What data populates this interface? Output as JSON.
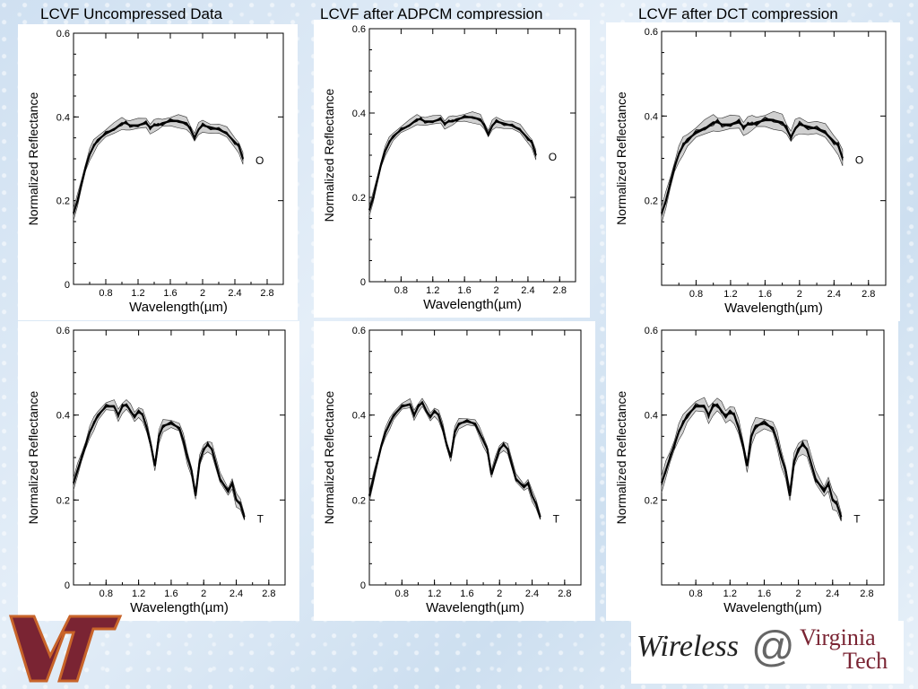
{
  "titles": {
    "uncompressed": "LCVF Uncompressed Data",
    "adpcm": "LCVF after ADPCM compression",
    "dct": "LCVF after DCT compression"
  },
  "logo": {
    "vt_text": "VT",
    "wireless": "Wireless",
    "at": "@",
    "virginia": "Virginia",
    "tech": "Tech"
  },
  "colors": {
    "vt_maroon": "#7a2433",
    "vt_orange": "#c8642a"
  },
  "chart_data": [
    {
      "id": "uncompressed-O",
      "type": "line",
      "marker": "O",
      "variant": "unc",
      "xlabel": "Wavelength(µm)",
      "ylabel": "Normalized Reflectance",
      "xlim": [
        0.4,
        3.0
      ],
      "ylim": [
        0,
        0.6
      ],
      "xticks": [
        "0.8",
        "1.2",
        "1.6",
        "2",
        "2.4",
        "2.8"
      ],
      "yticks": [
        "0",
        "0.2",
        "0.4",
        "0.6"
      ],
      "x": [
        0.4,
        0.45,
        0.5,
        0.55,
        0.6,
        0.65,
        0.7,
        0.8,
        0.9,
        1.0,
        1.05,
        1.1,
        1.2,
        1.3,
        1.35,
        1.4,
        1.45,
        1.5,
        1.6,
        1.7,
        1.8,
        1.85,
        1.9,
        1.95,
        2.0,
        2.1,
        2.2,
        2.3,
        2.4,
        2.45,
        2.5
      ],
      "y": [
        0.17,
        0.2,
        0.24,
        0.28,
        0.31,
        0.33,
        0.345,
        0.36,
        0.37,
        0.385,
        0.385,
        0.38,
        0.38,
        0.385,
        0.375,
        0.38,
        0.38,
        0.385,
        0.39,
        0.39,
        0.385,
        0.37,
        0.35,
        0.37,
        0.38,
        0.375,
        0.37,
        0.36,
        0.34,
        0.33,
        0.3
      ]
    },
    {
      "id": "adpcm-O",
      "type": "line",
      "marker": "O",
      "variant": "adpcm",
      "xlabel": "Wavelength(µm)",
      "ylabel": "Normalized Reflectance",
      "xlim": [
        0.4,
        3.0
      ],
      "ylim": [
        0,
        0.6
      ],
      "xticks": [
        "0.8",
        "1.2",
        "1.6",
        "2",
        "2.4",
        "2.8"
      ],
      "yticks": [
        "0",
        "0.2",
        "0.4",
        "0.6"
      ],
      "x": [
        0.4,
        0.45,
        0.5,
        0.55,
        0.6,
        0.65,
        0.7,
        0.8,
        0.9,
        1.0,
        1.05,
        1.1,
        1.2,
        1.3,
        1.35,
        1.4,
        1.45,
        1.5,
        1.6,
        1.7,
        1.8,
        1.85,
        1.9,
        1.95,
        2.0,
        2.1,
        2.2,
        2.3,
        2.4,
        2.45,
        2.5
      ],
      "y": [
        0.17,
        0.2,
        0.24,
        0.28,
        0.31,
        0.33,
        0.345,
        0.36,
        0.37,
        0.385,
        0.385,
        0.38,
        0.38,
        0.385,
        0.375,
        0.38,
        0.38,
        0.385,
        0.39,
        0.39,
        0.385,
        0.37,
        0.35,
        0.37,
        0.38,
        0.375,
        0.37,
        0.36,
        0.34,
        0.33,
        0.3
      ]
    },
    {
      "id": "dct-O",
      "type": "line",
      "marker": "O",
      "variant": "dct",
      "xlabel": "Wavelength(µm)",
      "ylabel": "Normalized Reflectance",
      "xlim": [
        0.4,
        3.0
      ],
      "ylim": [
        0,
        0.6
      ],
      "xticks": [
        "0.8",
        "1.2",
        "1.6",
        "2",
        "2.4",
        "2.8"
      ],
      "yticks": [
        "0.2",
        "0.4",
        "0.6"
      ],
      "x": [
        0.4,
        0.45,
        0.5,
        0.55,
        0.6,
        0.65,
        0.7,
        0.8,
        0.9,
        1.0,
        1.05,
        1.1,
        1.2,
        1.3,
        1.35,
        1.4,
        1.45,
        1.5,
        1.6,
        1.7,
        1.8,
        1.85,
        1.9,
        1.95,
        2.0,
        2.1,
        2.2,
        2.3,
        2.4,
        2.45,
        2.5
      ],
      "y": [
        0.17,
        0.2,
        0.24,
        0.28,
        0.31,
        0.33,
        0.345,
        0.36,
        0.37,
        0.385,
        0.385,
        0.38,
        0.38,
        0.385,
        0.375,
        0.38,
        0.38,
        0.385,
        0.39,
        0.39,
        0.385,
        0.37,
        0.35,
        0.37,
        0.38,
        0.375,
        0.37,
        0.36,
        0.34,
        0.33,
        0.3
      ]
    },
    {
      "id": "uncompressed-T",
      "type": "line",
      "marker": "T",
      "variant": "unc",
      "xlabel": "Wavelength(µm)",
      "ylabel": "Normalized Reflectance",
      "xlim": [
        0.4,
        3.0
      ],
      "ylim": [
        0,
        0.6
      ],
      "xticks": [
        "0.8",
        "1.2",
        "1.6",
        "2",
        "2.4",
        "2.8"
      ],
      "yticks": [
        "0",
        "0.2",
        "0.4",
        "0.6"
      ],
      "x": [
        0.4,
        0.45,
        0.5,
        0.55,
        0.6,
        0.65,
        0.7,
        0.8,
        0.9,
        0.95,
        1.0,
        1.05,
        1.1,
        1.15,
        1.2,
        1.25,
        1.3,
        1.35,
        1.4,
        1.45,
        1.5,
        1.6,
        1.7,
        1.75,
        1.8,
        1.85,
        1.9,
        1.95,
        2.0,
        2.05,
        2.1,
        2.2,
        2.3,
        2.35,
        2.4,
        2.45,
        2.5
      ],
      "y": [
        0.24,
        0.27,
        0.3,
        0.33,
        0.36,
        0.38,
        0.4,
        0.42,
        0.42,
        0.4,
        0.42,
        0.425,
        0.41,
        0.395,
        0.41,
        0.4,
        0.37,
        0.33,
        0.28,
        0.35,
        0.375,
        0.38,
        0.37,
        0.34,
        0.3,
        0.27,
        0.21,
        0.29,
        0.32,
        0.33,
        0.32,
        0.25,
        0.22,
        0.24,
        0.2,
        0.19,
        0.16
      ]
    },
    {
      "id": "adpcm-T",
      "type": "line",
      "marker": "T",
      "variant": "adpcm",
      "xlabel": "Wavelength(µm)",
      "ylabel": "Normalized Reflectance",
      "xlim": [
        0.4,
        3.0
      ],
      "ylim": [
        0,
        0.6
      ],
      "xticks": [
        "0.8",
        "1.2",
        "1.6",
        "2",
        "2.4",
        "2.8"
      ],
      "yticks": [
        "0",
        "0.2",
        "0.4",
        "0.6"
      ],
      "x": [
        0.4,
        0.45,
        0.5,
        0.55,
        0.6,
        0.65,
        0.7,
        0.8,
        0.9,
        0.95,
        1.0,
        1.05,
        1.1,
        1.15,
        1.2,
        1.25,
        1.3,
        1.35,
        1.4,
        1.45,
        1.5,
        1.6,
        1.7,
        1.75,
        1.8,
        1.85,
        1.9,
        1.95,
        2.0,
        2.05,
        2.1,
        2.2,
        2.3,
        2.35,
        2.4,
        2.45,
        2.5
      ],
      "y": [
        0.21,
        0.25,
        0.29,
        0.33,
        0.36,
        0.38,
        0.4,
        0.42,
        0.425,
        0.4,
        0.42,
        0.43,
        0.41,
        0.395,
        0.41,
        0.4,
        0.37,
        0.33,
        0.3,
        0.36,
        0.38,
        0.385,
        0.38,
        0.36,
        0.34,
        0.32,
        0.26,
        0.29,
        0.32,
        0.33,
        0.32,
        0.25,
        0.23,
        0.24,
        0.21,
        0.19,
        0.16
      ]
    },
    {
      "id": "dct-T",
      "type": "line",
      "marker": "T",
      "variant": "dct",
      "xlabel": "Wavelength(µm)",
      "ylabel": "Normalized Reflectance",
      "xlim": [
        0.4,
        3.0
      ],
      "ylim": [
        0,
        0.6
      ],
      "xticks": [
        "0.8",
        "1.2",
        "1.6",
        "2",
        "2.4",
        "2.8"
      ],
      "yticks": [
        "0.2",
        "0.4",
        "0.6"
      ],
      "x": [
        0.4,
        0.45,
        0.5,
        0.55,
        0.6,
        0.65,
        0.7,
        0.8,
        0.9,
        0.95,
        1.0,
        1.05,
        1.1,
        1.15,
        1.2,
        1.25,
        1.3,
        1.35,
        1.4,
        1.45,
        1.5,
        1.6,
        1.7,
        1.75,
        1.8,
        1.85,
        1.9,
        1.95,
        2.0,
        2.05,
        2.1,
        2.2,
        2.3,
        2.35,
        2.4,
        2.45,
        2.5
      ],
      "y": [
        0.24,
        0.27,
        0.3,
        0.33,
        0.36,
        0.38,
        0.4,
        0.42,
        0.42,
        0.4,
        0.42,
        0.425,
        0.41,
        0.395,
        0.41,
        0.4,
        0.37,
        0.33,
        0.28,
        0.35,
        0.375,
        0.38,
        0.37,
        0.34,
        0.3,
        0.27,
        0.21,
        0.29,
        0.32,
        0.33,
        0.32,
        0.25,
        0.22,
        0.24,
        0.2,
        0.19,
        0.16
      ]
    }
  ]
}
